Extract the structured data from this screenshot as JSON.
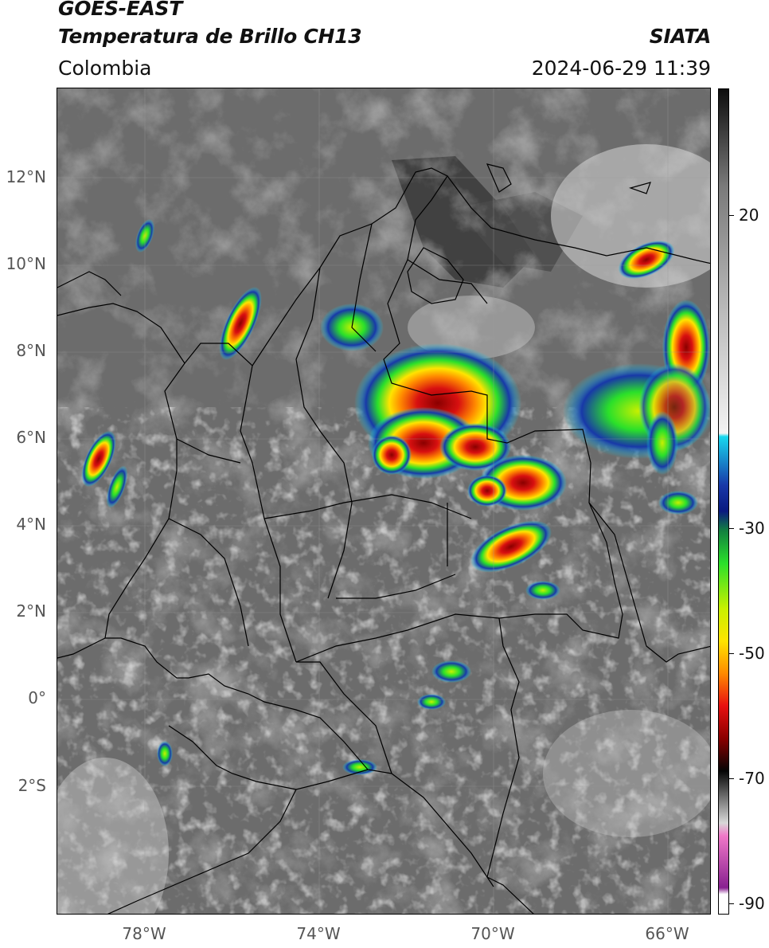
{
  "header": {
    "satellite": "GOES-EAST",
    "product": "Temperatura de Brillo CH13",
    "region": "Colombia",
    "source": "SIATA",
    "datetime": "2024-06-29 11:39"
  },
  "map": {
    "latitude_labels": [
      "12°N",
      "10°N",
      "8°N",
      "6°N",
      "4°N",
      "2°N",
      "0°",
      "2°S"
    ],
    "longitude_labels": [
      "78°W",
      "74°W",
      "70°W",
      "66°W"
    ],
    "extent": {
      "lon_min": -80.0,
      "lon_max": -65.0,
      "lat_min": -4.8,
      "lat_max": 14.2
    },
    "colors": {
      "land_gray": "#6a6a6a",
      "cloud_white": "#e6e6e6",
      "ocean_gray": "#707070",
      "coast_black": "#000000"
    }
  },
  "colorbar": {
    "tick_labels": [
      "20",
      "-30",
      "-50",
      "-70",
      "-90"
    ],
    "unit": "",
    "stops": [
      {
        "v": 35,
        "c": "#0d0d0d"
      },
      {
        "v": 20,
        "c": "#7a7a7a"
      },
      {
        "v": 0,
        "c": "#bdbdbd"
      },
      {
        "v": -18,
        "c": "#f3f3f3"
      },
      {
        "v": -18.5,
        "c": "#18d8ef"
      },
      {
        "v": -26,
        "c": "#1838a8"
      },
      {
        "v": -30,
        "c": "#0a1a80"
      },
      {
        "v": -33,
        "c": "#128040"
      },
      {
        "v": -38,
        "c": "#2ae02a"
      },
      {
        "v": -45,
        "c": "#c8f000"
      },
      {
        "v": -50,
        "c": "#ffe400"
      },
      {
        "v": -55,
        "c": "#ff8a00"
      },
      {
        "v": -60,
        "c": "#e81010"
      },
      {
        "v": -65,
        "c": "#8a0000"
      },
      {
        "v": -70,
        "c": "#050505"
      },
      {
        "v": -78,
        "c": "#d8d8d8"
      },
      {
        "v": -80,
        "c": "#f078c8"
      },
      {
        "v": -88,
        "c": "#882090"
      },
      {
        "v": -89,
        "c": "#ffffff"
      },
      {
        "v": -92,
        "c": "#ffffff"
      }
    ]
  }
}
